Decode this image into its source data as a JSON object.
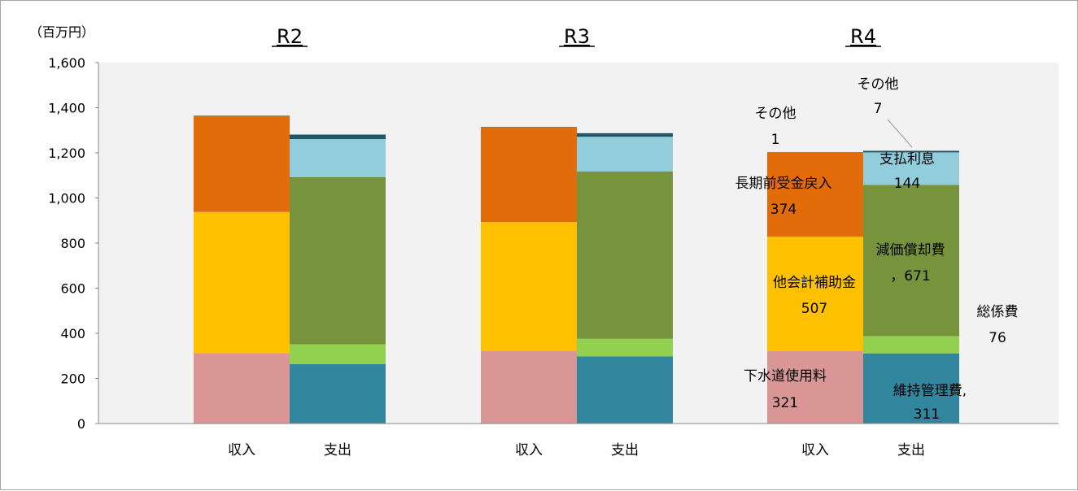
{
  "chart_data": {
    "type": "bar",
    "stacked": true,
    "unit_label": "（百万円）",
    "ylim": [
      0,
      1600
    ],
    "yticks": [
      "0",
      "200",
      "400",
      "600",
      "800",
      "1,000",
      "1,200",
      "1,400",
      "1,600"
    ],
    "grid": false,
    "groups": [
      {
        "year": "R2",
        "bars": [
          {
            "label": "収入",
            "segments": [
              {
                "name": "下水道使用料",
                "value": 312,
                "color": "#da9694"
              },
              {
                "name": "他会計補助金",
                "value": 626,
                "color": "#ffc000"
              },
              {
                "name": "長期前受金戻入",
                "value": 426,
                "color": "#e26b0a"
              },
              {
                "name": "その他",
                "value": 1,
                "color": "#4a7b8c"
              }
            ]
          },
          {
            "label": "支出",
            "segments": [
              {
                "name": "維持管理費",
                "value": 263,
                "color": "#31859c"
              },
              {
                "name": "総係費",
                "value": 88,
                "color": "#92d050"
              },
              {
                "name": "減価償却費",
                "value": 742,
                "color": "#77933c"
              },
              {
                "name": "支払利息",
                "value": 168,
                "color": "#92cddc"
              },
              {
                "name": "その他",
                "value": 20,
                "color": "#215867"
              }
            ]
          }
        ]
      },
      {
        "year": "R3",
        "bars": [
          {
            "label": "収入",
            "segments": [
              {
                "name": "下水道使用料",
                "value": 322,
                "color": "#da9694"
              },
              {
                "name": "他会計補助金",
                "value": 571,
                "color": "#ffc000"
              },
              {
                "name": "長期前受金戻入",
                "value": 421,
                "color": "#e26b0a"
              },
              {
                "name": "その他",
                "value": 1,
                "color": "#4a7b8c"
              }
            ]
          },
          {
            "label": "支出",
            "segments": [
              {
                "name": "維持管理費",
                "value": 298,
                "color": "#31859c"
              },
              {
                "name": "総係費",
                "value": 78,
                "color": "#92d050"
              },
              {
                "name": "減価償却費",
                "value": 741,
                "color": "#77933c"
              },
              {
                "name": "支払利息",
                "value": 154,
                "color": "#92cddc"
              },
              {
                "name": "その他",
                "value": 16,
                "color": "#215867"
              }
            ]
          }
        ]
      },
      {
        "year": "R4",
        "bars": [
          {
            "label": "収入",
            "segments": [
              {
                "name": "下水道使用料",
                "value": 321,
                "color": "#da9694"
              },
              {
                "name": "他会計補助金",
                "value": 507,
                "color": "#ffc000"
              },
              {
                "name": "長期前受金戻入",
                "value": 374,
                "color": "#e26b0a"
              },
              {
                "name": "その他",
                "value": 1,
                "color": "#4a7b8c"
              }
            ]
          },
          {
            "label": "支出",
            "segments": [
              {
                "name": "維持管理費",
                "value": 311,
                "color": "#31859c"
              },
              {
                "name": "総係費",
                "value": 76,
                "color": "#92d050"
              },
              {
                "name": "減価償却費",
                "value": 671,
                "color": "#77933c"
              },
              {
                "name": "支払利息",
                "value": 144,
                "color": "#92cddc"
              },
              {
                "name": "その他",
                "value": 7,
                "color": "#215867"
              }
            ]
          }
        ]
      }
    ],
    "annotations": {
      "in_sonota_name": "その他",
      "in_sonota_val": "1",
      "out_sonota_name": "その他",
      "out_sonota_val": "7",
      "interest_name": "支払利息",
      "interest_val": "144",
      "longterm_name": "長期前受金戻入",
      "longterm_val": "374",
      "depr_name": "減価償却費",
      "depr_val": "，671",
      "subsidy_name": "他会計補助金",
      "subsidy_val": "507",
      "admin_name": "総係費",
      "admin_val": "76",
      "usage_name": "下水道使用料",
      "usage_val": "321",
      "maint_name": "維持管理費,",
      "maint_val": "311"
    }
  }
}
